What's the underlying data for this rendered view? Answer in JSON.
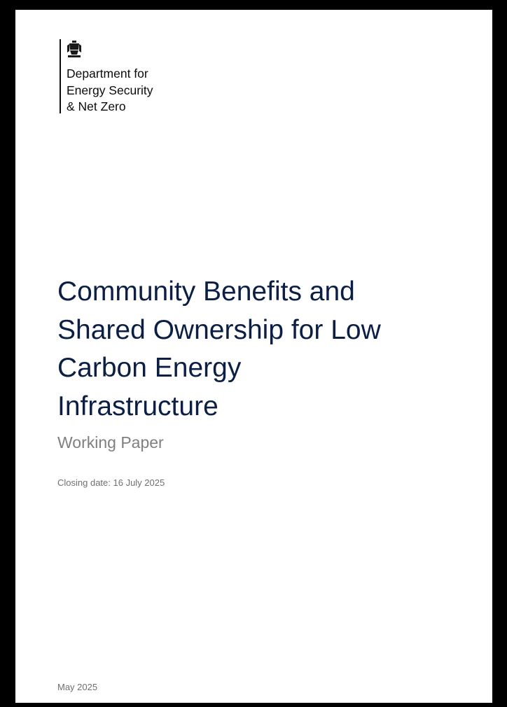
{
  "header": {
    "department": [
      "Department for",
      "Energy Security",
      "& Net Zero"
    ]
  },
  "title": [
    "Community Benefits and",
    "Shared Ownership for Low",
    "Carbon Energy",
    "Infrastructure"
  ],
  "subtitle": "Working Paper",
  "closing_date": "Closing date: 16 July 2025",
  "date": "May 2025"
}
